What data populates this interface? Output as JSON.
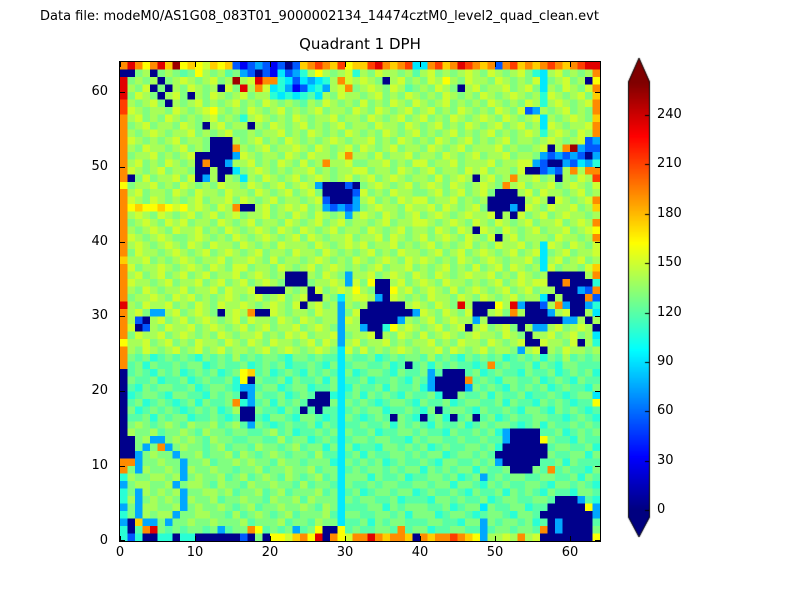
{
  "header": {
    "text": "Data file: modeM0/AS1G08_083T01_9000002134_14474cztM0_level2_quad_clean.evt"
  },
  "colors": {
    "background": "#ffffff",
    "text": "#000000",
    "axes": "#000000",
    "colorbar_low": "#00007f",
    "colorbar_high": "#7f0000"
  },
  "chart_data": {
    "type": "heatmap",
    "title": "Quadrant 1 DPH",
    "xlabel": "",
    "ylabel": "",
    "x_ticks": [
      0,
      10,
      20,
      30,
      40,
      50,
      60
    ],
    "y_ticks": [
      0,
      10,
      20,
      30,
      40,
      50,
      60
    ],
    "x_range": [
      0,
      64
    ],
    "y_range": [
      0,
      64
    ],
    "grid_size": 64,
    "colormap": "jet",
    "vmax": 260,
    "colorbar": {
      "ticks": [
        0,
        30,
        60,
        90,
        120,
        150,
        180,
        210,
        240
      ],
      "extend": "both"
    },
    "palette_values": {
      "0": 3,
      "1": 30,
      "2": 55,
      "3": 75,
      "4": 92,
      "5": 108,
      "6": 120,
      "7": 130,
      "8": 140,
      "9": 150,
      "a": 162,
      "b": 175,
      "c": 192,
      "d": 212,
      "e": 235,
      "f": 252
    },
    "grid_rows_top_to_bottom": [
      "cecacebfaba9bab212321202bcdcbdabbdecbcd44cdbcedcbc2cdbcbcdcbcdee",
      "0078078767a878673202142358a878958798878689787898798789754897878c",
      "e78780789878978f89ecc54243458c9898708978798a8798879878794789780a",
      "e879070879878097e8c94531245389c78987986787987089788978974879879c",
      "e79870897087987897885454564879887897879878798787987898785987897b",
      "d878970878978789787987876879878797879879878978787987879858 98789c",
      "d98788798789a87879878978789788798798789789787987879879238789787c",
      "c897879878789787589878798788978879878978978798789879878948 78987b",
      "c789788798708978808798789787897887988798789787987897897849 87889c",
      "c878987889787897787889787987879878798789787897878978789858 98798c",
      "c987878978870008789787987878987889787987879878978789788789878923",
      "c87988789787000c878978898798789798789788798789788897877890 8cf322",
      "c788978789000003987887987988 79c887978897887987897889788732323203",
      "c8978798780c003889787987978c88977889787997889788897889932 0032435",
      "c98789788700800478987878897878899788798789788798978879002328c8cc",
      "c07978897903808748798789789878978978987887978980 8978c8897808798d",
      "a78897879878798879878978983000207898789789879878987c897889789879",
      "c897887987988798879878978970000297879887789789789700089798878978",
      "c9879878789788979878978878920003897879899788978780000089809 8789c",
      "cabaaba9a898798c008978989783232378988798897987897000309879 88978b",
      "c898798789789789788978798798783898798789789878988908097897898878",
      "c789879897887987897887987897897887897889987898798798789788 97898c",
      "c878987988978798789879879878978879878978879879809879878978 89789a",
      "c987898778987879878987897987889788979878978987987908978887 98878c",
      "c898789879879887987879888798789897889787897878978798897849879879",
      "c79887898789789878978879887987878978798878978978987897894789 7889",
      "b889787898788978898797887898787987898798987879878987889748978978",
      "c978898789879879978879878978987878978897878978797897987849 78879b",
      "c897897897897889789878000879873889789879879878988978798780 00008c",
      "c988789788978978978987000788983 97a00897898798878789789899 00c0005",
      "c879878897889798890000878097898a8700a89789879789878978978800032c",
      "c788987989787898789789789008748998309878798879879878978840 8000c2",
      "e879889787987988987898790897838780000089879 87e8000a8e30028c30035",
      "c8973389789870898c00987887988379000000039879879008 97c80003890084",
      "c820897897898789798879879878839800000387897898838000000000033808",
      "c90287988978987897897889789873883005a898789789089789708338978980",
      "c798897898787987889787989788937889087987978987898879870889789784",
      "a889789787988798798798878979838978897878897879887987890098879085",
      "c879878978978978878978987898749797878987889798789788738908 798878",
      "c767567676576768676776577676647667567677686765767675676757686767",
      "c675766767756766756767566765746776675606757676656c67667576577666",
      "0676576756767567ab67567657676475677657667360006756766576675 67675",
      "0766756675676675a0766757667574667566765763 0000c67657766756765766",
      "0657677667567765336775677566745766757667530000376765767675676657",
      "0567765776657676037667567600546757676576675007667576675667656774",
      "067567656757667c536757676000747676567765766756776675766576 76566a",
      "0756767656767568007665760606646767756676570677657667657765767656",
      "0667576775667656006577657765647656760765067506706756766776656765",
      "0787678768778678637656766757646676675767657667567677656757667676",
      "0877867787687767766786756676747667566776766576676753000066756767",
      "0078337878768776677668677567646776776657677667667663 0000a7665766",
      "00737c3787767867768776786775747566577676756766776750000006776675",
      "0037877377867786876787677686646757667767677567767600000007667757",
      "cc37787737786778787768776777547676756766765776676730000066757666",
      "c738778738778776778677877867746767767677576767757667000 76c676657",
      "5877887837877867867876876786747775766756677675673676776677667576",
      "3788778378876877687787768677647667677667767757765767667765776765",
      "5738787837788786778678677786746756776775676676576675767657665776",
      "5837878738778677877687786877747677667566657767667567766776000365",
      "3738877837877876786778778768746667757677766756774766775660 0000a3",
      "5738788377887768678767867778647766776757775677656776577600000003",
      "30b3373778778777867778677687746675767766677665773767767560300006",
      "506ce76767767367 7ca6767367a00a6766776c677566776636776776c0300007",
      "525005505500000 02070aa9bcae0ca9ccecbccb0cbccdcba38898c890000000a"
    ]
  }
}
